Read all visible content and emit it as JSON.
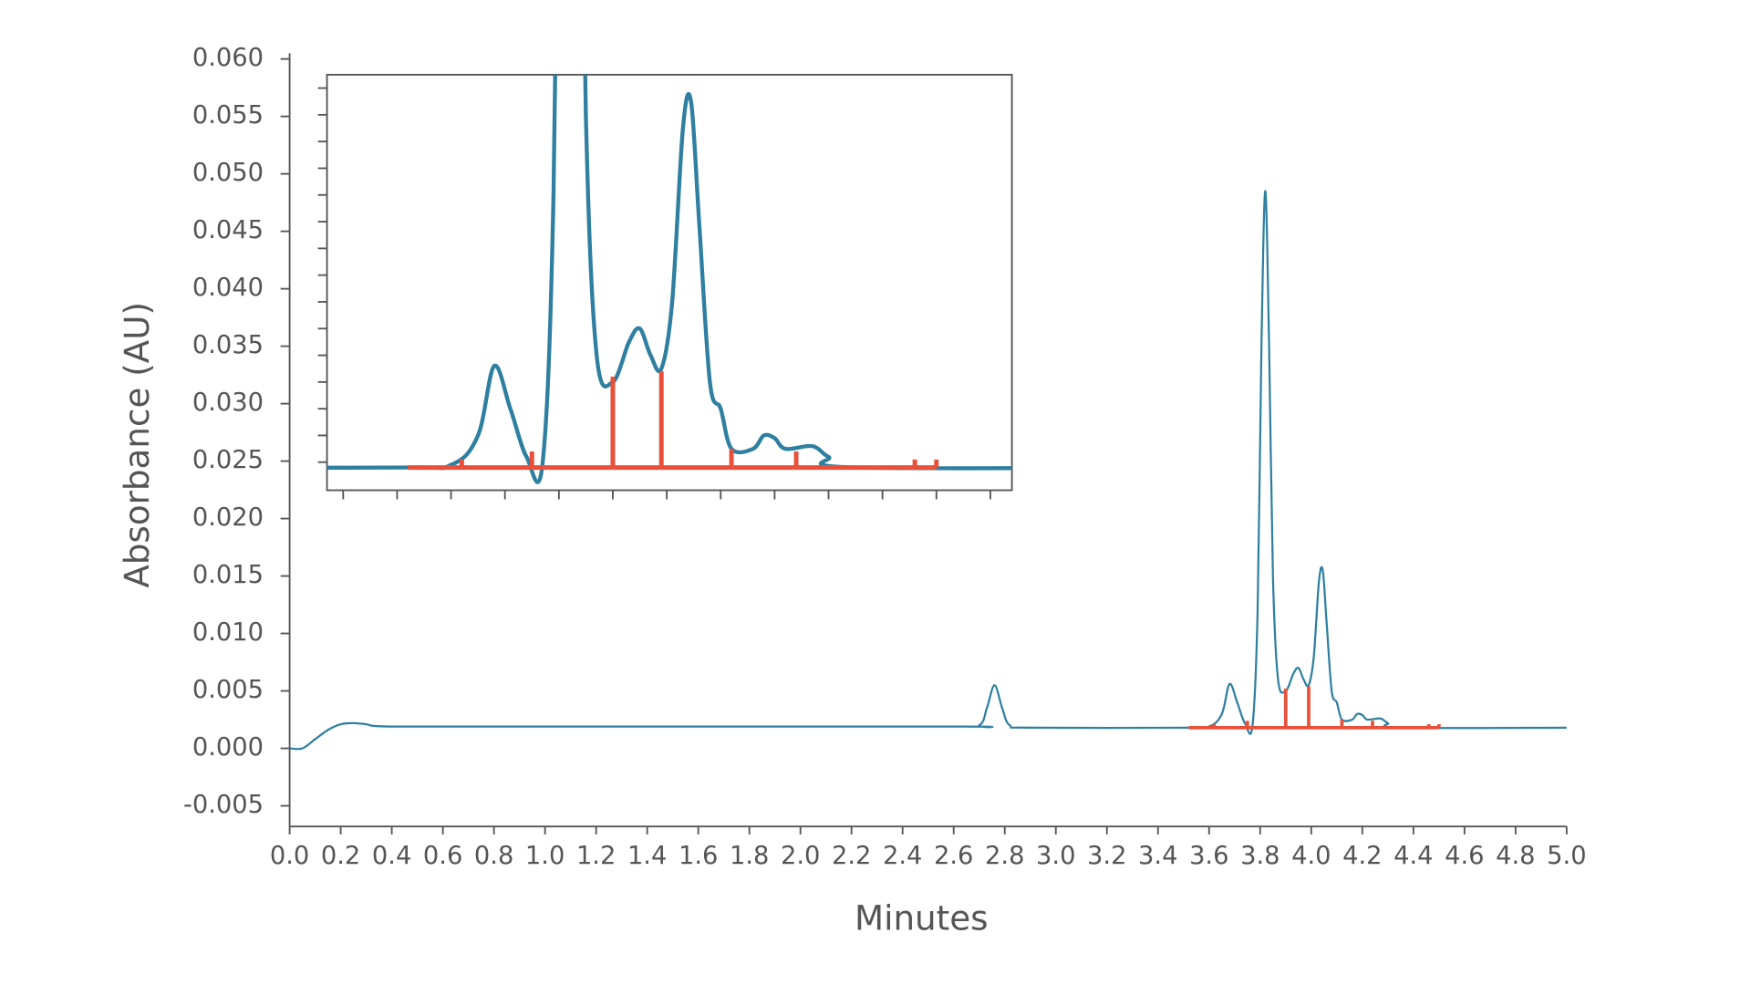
{
  "chart_data": {
    "type": "line",
    "x_label": "Minutes",
    "y_label": "Absorbance (AU)",
    "color": "#2e7fa0",
    "marker_color": "#e8503a",
    "x": [
      0,
      0.05,
      0.1,
      0.15,
      0.2,
      0.25,
      0.3,
      0.4,
      1.0,
      2.6,
      2.7,
      2.73,
      2.76,
      2.79,
      2.82,
      2.9,
      3.5,
      3.6,
      3.65,
      3.68,
      3.71,
      3.74,
      3.77,
      3.79,
      3.805,
      3.82,
      3.835,
      3.85,
      3.87,
      3.9,
      3.93,
      3.95,
      3.97,
      3.99,
      4.01,
      4.03,
      4.045,
      4.06,
      4.08,
      4.1,
      4.12,
      4.16,
      4.18,
      4.2,
      4.22,
      4.27,
      4.3,
      4.35,
      5.0
    ],
    "y": [
      0,
      0,
      0.0008,
      0.0016,
      0.0021,
      0.0022,
      0.0021,
      0.0019,
      0.0019,
      0.0019,
      0.002,
      0.0035,
      0.0055,
      0.0035,
      0.002,
      0.0018,
      0.0018,
      0.0019,
      0.003,
      0.0056,
      0.004,
      0.0022,
      0.002,
      0.012,
      0.035,
      0.0485,
      0.035,
      0.015,
      0.006,
      0.005,
      0.0065,
      0.007,
      0.006,
      0.0055,
      0.008,
      0.0145,
      0.0155,
      0.011,
      0.005,
      0.004,
      0.0025,
      0.0025,
      0.003,
      0.0029,
      0.0025,
      0.0026,
      0.0022,
      0.0018,
      0.0018
    ],
    "xlim": [
      0,
      5
    ],
    "ylim": [
      -0.0068,
      0.0605
    ],
    "xticks": [
      {
        "value": 0,
        "label": "0.0"
      },
      {
        "value": 0.2,
        "label": "0.2"
      },
      {
        "value": 0.4,
        "label": "0.4"
      },
      {
        "value": 0.6,
        "label": "0.6"
      },
      {
        "value": 0.8,
        "label": "0.8"
      },
      {
        "value": 1,
        "label": "1.0"
      },
      {
        "value": 1.2,
        "label": "1.2"
      },
      {
        "value": 1.4,
        "label": "1.4"
      },
      {
        "value": 1.6,
        "label": "1.6"
      },
      {
        "value": 1.8,
        "label": "1.8"
      },
      {
        "value": 2,
        "label": "2.0"
      },
      {
        "value": 2.2,
        "label": "2.2"
      },
      {
        "value": 2.4,
        "label": "2.4"
      },
      {
        "value": 2.6,
        "label": "2.6"
      },
      {
        "value": 2.8,
        "label": "2.8"
      },
      {
        "value": 3,
        "label": "3.0"
      },
      {
        "value": 3.2,
        "label": "3.2"
      },
      {
        "value": 3.4,
        "label": "3.4"
      },
      {
        "value": 3.6,
        "label": "3.6"
      },
      {
        "value": 3.8,
        "label": "3.8"
      },
      {
        "value": 4,
        "label": "4.0"
      },
      {
        "value": 4.2,
        "label": "4.2"
      },
      {
        "value": 4.4,
        "label": "4.4"
      },
      {
        "value": 4.6,
        "label": "4.6"
      },
      {
        "value": 4.8,
        "label": "4.8"
      },
      {
        "value": 5,
        "label": "5.0"
      }
    ],
    "yticks": [
      {
        "value": -0.005,
        "label": "-0.005"
      },
      {
        "value": 0,
        "label": "0.000"
      },
      {
        "value": 0.005,
        "label": "0.005"
      },
      {
        "value": 0.01,
        "label": "0.010"
      },
      {
        "value": 0.015,
        "label": "0.015"
      },
      {
        "value": 0.02,
        "label": "0.020"
      },
      {
        "value": 0.025,
        "label": "0.025"
      },
      {
        "value": 0.03,
        "label": "0.030"
      },
      {
        "value": 0.035,
        "label": "0.035"
      },
      {
        "value": 0.04,
        "label": "0.040"
      },
      {
        "value": 0.045,
        "label": "0.045"
      },
      {
        "value": 0.05,
        "label": "0.050"
      },
      {
        "value": 0.055,
        "label": "0.055"
      },
      {
        "value": 0.06,
        "label": "0.060"
      }
    ],
    "integration": {
      "baseline_x": [
        3.52,
        4.5
      ],
      "baseline_y": 0.0018,
      "drop_x": [
        3.62,
        3.75,
        3.9,
        3.99,
        4.12,
        4.24,
        4.46,
        4.5
      ],
      "drop_y": [
        0.0021,
        0.0024,
        0.0052,
        0.0054,
        0.0025,
        0.0024,
        0.0021,
        0.0021
      ]
    },
    "inset": {
      "xlim": [
        3.37,
        4.64
      ],
      "ylim": [
        0.00095,
        0.0165
      ],
      "xticks": [
        3.4,
        3.5,
        3.6,
        3.7,
        3.8,
        3.9,
        4.0,
        4.1,
        4.2,
        4.3,
        4.4,
        4.5,
        4.6
      ],
      "yticks": [
        0.002,
        0.003,
        0.004,
        0.005,
        0.006,
        0.007,
        0.008,
        0.009,
        0.01,
        0.011,
        0.012,
        0.013,
        0.014,
        0.015,
        0.016
      ]
    }
  }
}
